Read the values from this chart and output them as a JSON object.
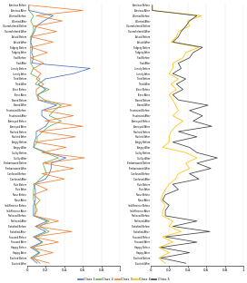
{
  "labels": [
    "Anxious Before",
    "Anxious After",
    "Worried Before",
    "Worried After",
    "Overwhelmed Before",
    "Overwhelmed After",
    "Afraid Before",
    "Afraid After",
    "Fidgety Before",
    "Fidgety After",
    "Sad Before",
    "Sad After",
    "Lonely Before",
    "Lonely After",
    "Tired Before",
    "Tired After",
    "Tense Before",
    "Tense After",
    "Bored Before",
    "Bored After",
    "Frustrated Before",
    "Frustrated After",
    "Annoyed Before",
    "Annoyed After",
    "Rushed Before",
    "Rushed After",
    "Angry Before",
    "Angry After",
    "Guilty Before",
    "Guilty After",
    "Embarrassed Before",
    "Embarrassed After",
    "Confused Before",
    "Confused After",
    "Pain Before",
    "Pain After",
    "Nour Before",
    "Nour After",
    "Indifference Before",
    "Indifference After",
    "Relieved Before",
    "Relieved After",
    "Satisfied Before",
    "Satisfied After",
    "Focused Before",
    "Focused After",
    "Happy Before",
    "Happy After",
    "Excited Before",
    "Excited After"
  ],
  "c1": [
    0.02,
    0.02,
    0.28,
    0.18,
    0.1,
    0.08,
    0.05,
    0.04,
    0.06,
    0.05,
    0.07,
    0.05,
    0.68,
    0.5,
    0.2,
    0.12,
    0.2,
    0.12,
    0.12,
    0.32,
    0.16,
    0.16,
    0.24,
    0.2,
    0.1,
    0.1,
    0.08,
    0.07,
    0.22,
    0.42,
    0.26,
    0.26,
    0.24,
    0.2,
    0.07,
    0.09,
    0.09,
    0.09,
    0.07,
    0.07,
    0.07,
    0.22,
    0.09,
    0.2,
    0.07,
    0.16,
    0.04,
    0.13,
    0.04,
    0.11
  ],
  "c2": [
    0.02,
    0.02,
    0.07,
    0.04,
    0.07,
    0.07,
    0.04,
    0.04,
    0.04,
    0.04,
    0.04,
    0.04,
    0.07,
    0.04,
    0.14,
    0.09,
    0.24,
    0.11,
    0.19,
    0.37,
    0.29,
    0.24,
    0.37,
    0.24,
    0.17,
    0.11,
    0.11,
    0.07,
    0.19,
    0.34,
    0.17,
    0.19,
    0.21,
    0.14,
    0.09,
    0.07,
    0.07,
    0.07,
    0.09,
    0.09,
    0.09,
    0.24,
    0.14,
    0.24,
    0.09,
    0.17,
    0.07,
    0.14,
    0.07,
    0.14
  ],
  "c3": [
    0.02,
    0.6,
    0.1,
    0.38,
    0.07,
    0.32,
    0.04,
    0.28,
    0.04,
    0.22,
    0.04,
    0.18,
    0.07,
    0.15,
    0.1,
    0.18,
    0.1,
    0.1,
    0.13,
    0.48,
    0.18,
    0.5,
    0.2,
    0.6,
    0.13,
    0.52,
    0.09,
    0.42,
    0.16,
    0.62,
    0.18,
    0.5,
    0.16,
    0.4,
    0.09,
    0.22,
    0.07,
    0.14,
    0.09,
    0.11,
    0.07,
    0.34,
    0.09,
    0.48,
    0.07,
    0.34,
    0.04,
    0.28,
    0.04,
    0.24
  ],
  "c4": [
    0.02,
    0.02,
    0.55,
    0.4,
    0.42,
    0.3,
    0.28,
    0.22,
    0.52,
    0.38,
    0.35,
    0.24,
    0.24,
    0.2,
    0.3,
    0.22,
    0.28,
    0.2,
    0.24,
    0.27,
    0.3,
    0.24,
    0.35,
    0.27,
    0.22,
    0.2,
    0.2,
    0.13,
    0.38,
    0.5,
    0.38,
    0.42,
    0.3,
    0.27,
    0.2,
    0.16,
    0.13,
    0.11,
    0.16,
    0.13,
    0.13,
    0.24,
    0.2,
    0.33,
    0.13,
    0.24,
    0.09,
    0.2,
    0.09,
    0.16
  ],
  "c5": [
    0.02,
    0.02,
    0.5,
    0.42,
    0.38,
    0.33,
    0.3,
    0.24,
    0.56,
    0.46,
    0.42,
    0.3,
    0.33,
    0.24,
    0.38,
    0.28,
    0.35,
    0.24,
    0.3,
    0.62,
    0.42,
    0.56,
    0.46,
    0.66,
    0.3,
    0.5,
    0.24,
    0.42,
    0.5,
    0.72,
    0.5,
    0.65,
    0.42,
    0.52,
    0.24,
    0.3,
    0.16,
    0.13,
    0.2,
    0.16,
    0.16,
    0.5,
    0.24,
    0.64,
    0.16,
    0.5,
    0.11,
    0.42,
    0.11,
    0.38
  ],
  "colors": {
    "c1": "#4472C4",
    "c2": "#70AD47",
    "c3": "#ED7D31",
    "c4": "#FFC000",
    "c5": "#404040"
  },
  "legend_labels": [
    "Class 1",
    "Class 2",
    "Class 3",
    "Class 4",
    "Class 5"
  ],
  "xticks": [
    0,
    0.2,
    0.4,
    0.6,
    0.8,
    1
  ],
  "xtick_labels": [
    "0",
    "0.2",
    "0.4",
    "0.6",
    "0.8",
    "1"
  ]
}
